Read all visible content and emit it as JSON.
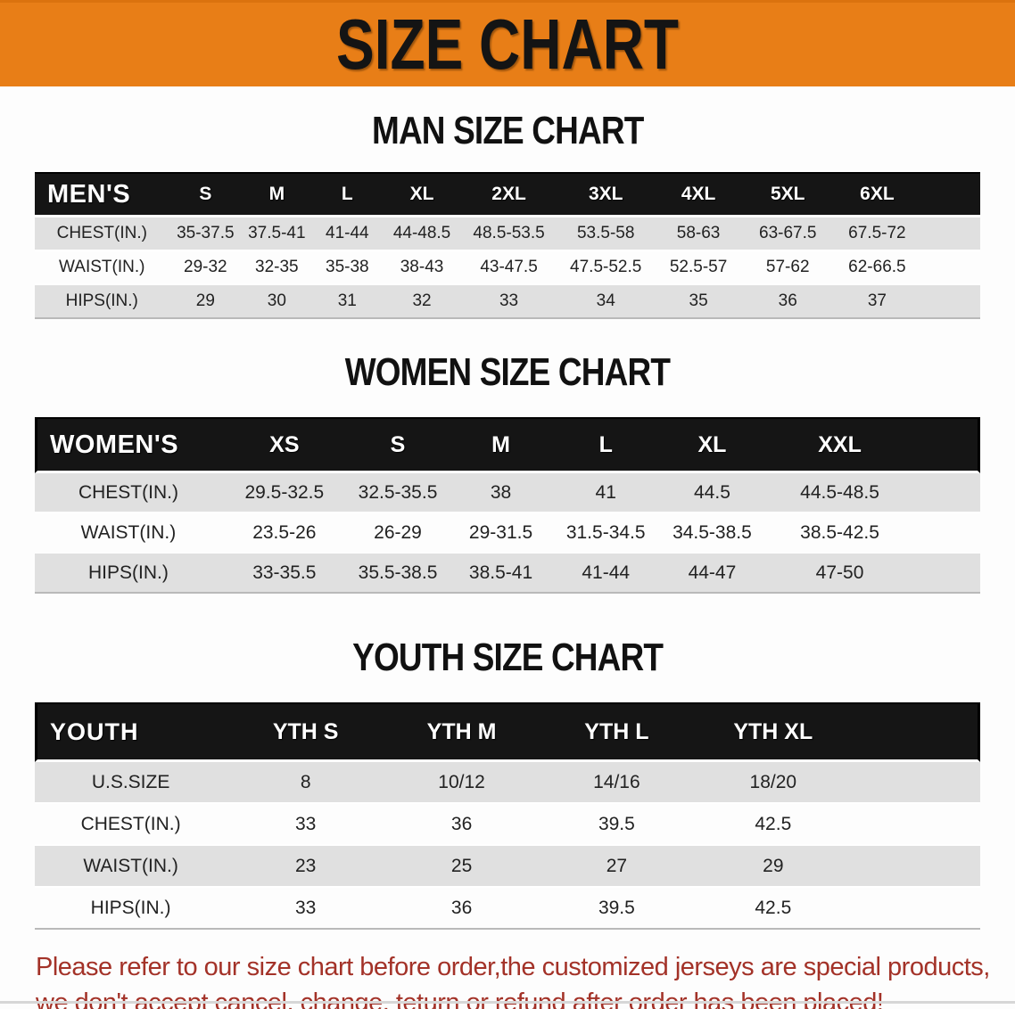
{
  "banner": {
    "title": "SIZE CHART",
    "bg_color": "#E87E17",
    "text_color": "#141414"
  },
  "sections": [
    {
      "heading": "MAN SIZE CHART",
      "table": {
        "header": [
          "MEN'S",
          "S",
          "M",
          "L",
          "XL",
          "2XL",
          "3XL",
          "4XL",
          "5XL",
          "6XL"
        ],
        "rows": [
          [
            "CHEST(IN.)",
            "35-37.5",
            "37.5-41",
            "41-44",
            "44-48.5",
            "48.5-53.5",
            "53.5-58",
            "58-63",
            "63-67.5",
            "67.5-72"
          ],
          [
            "WAIST(IN.)",
            "29-32",
            "32-35",
            "35-38",
            "38-43",
            "43-47.5",
            "47.5-52.5",
            "52.5-57",
            "57-62",
            "62-66.5"
          ],
          [
            "HIPS(IN.)",
            "29",
            "30",
            "31",
            "32",
            "33",
            "34",
            "35",
            "36",
            "37"
          ]
        ]
      }
    },
    {
      "heading": "WOMEN SIZE CHART",
      "table": {
        "header": [
          "WOMEN'S",
          "XS",
          "S",
          "M",
          "L",
          "XL",
          "XXL"
        ],
        "rows": [
          [
            "CHEST(IN.)",
            "29.5-32.5",
            "32.5-35.5",
            "38",
            "41",
            "44.5",
            "44.5-48.5"
          ],
          [
            "WAIST(IN.)",
            "23.5-26",
            "26-29",
            "29-31.5",
            "31.5-34.5",
            "34.5-38.5",
            "38.5-42.5"
          ],
          [
            "HIPS(IN.)",
            "33-35.5",
            "35.5-38.5",
            "38.5-41",
            "41-44",
            "44-47",
            "47-50"
          ]
        ]
      }
    },
    {
      "heading": "YOUTH SIZE CHART",
      "table": {
        "header": [
          "YOUTH",
          "YTH S",
          "YTH M",
          "YTH L",
          "YTH XL"
        ],
        "rows": [
          [
            "U.S.SIZE",
            "8",
            "10/12",
            "14/16",
            "18/20"
          ],
          [
            "CHEST(IN.)",
            "33",
            "36",
            "39.5",
            "42.5"
          ],
          [
            "WAIST(IN.)",
            "23",
            "25",
            "27",
            "29"
          ],
          [
            "HIPS(IN.)",
            "33",
            "36",
            "39.5",
            "42.5"
          ]
        ]
      }
    }
  ],
  "disclaimer": {
    "lines": [
      "Please refer to our size chart before order,the customized jerseys are special products,",
      "we don't accept cancel, change, teturn or refund after order has been placed!"
    ],
    "color": "#A33228"
  }
}
